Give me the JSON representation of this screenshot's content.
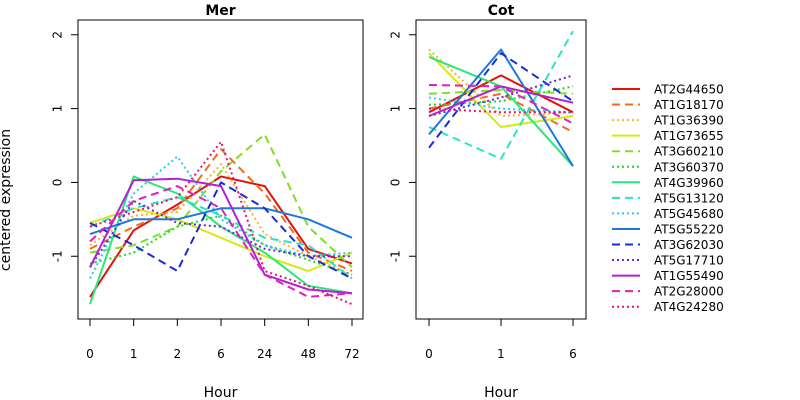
{
  "chart_data": {
    "type": "line",
    "ylabel": "centered expression",
    "xlabel": "Hour",
    "ylim": [
      -1.85,
      2.2
    ],
    "ytick_values": [
      -1,
      0,
      1,
      2
    ],
    "ytick_labels": [
      "-1",
      "0",
      "1",
      "2"
    ],
    "legend_position": "right",
    "series_styles": [
      {
        "name": "AT2G44650",
        "color": "#e3120b",
        "dash": "solid"
      },
      {
        "name": "AT1G18170",
        "color": "#f26b1d",
        "dash": "dashed"
      },
      {
        "name": "AT1G36390",
        "color": "#f5b52a",
        "dash": "dotted"
      },
      {
        "name": "AT1G73655",
        "color": "#d4ea15",
        "dash": "solid"
      },
      {
        "name": "AT3G60210",
        "color": "#7fde25",
        "dash": "dashed"
      },
      {
        "name": "AT3G60370",
        "color": "#22d622",
        "dash": "dotted"
      },
      {
        "name": "AT4G39960",
        "color": "#27e87a",
        "dash": "solid"
      },
      {
        "name": "AT5G13120",
        "color": "#26e6c5",
        "dash": "dashed"
      },
      {
        "name": "AT5G45680",
        "color": "#2ac9f3",
        "dash": "dotted"
      },
      {
        "name": "AT5G55220",
        "color": "#1f79d8",
        "dash": "solid"
      },
      {
        "name": "AT3G62030",
        "color": "#1a2bd8",
        "dash": "dashed"
      },
      {
        "name": "AT5G17710",
        "color": "#6a25d9",
        "dash": "dotted"
      },
      {
        "name": "AT1G55490",
        "color": "#b21fd6",
        "dash": "solid"
      },
      {
        "name": "AT2G28000",
        "color": "#e11fc0",
        "dash": "dashed"
      },
      {
        "name": "AT4G24280",
        "color": "#e3166a",
        "dash": "dotted"
      }
    ],
    "panels": [
      {
        "title": "Mer",
        "categories": [
          "0",
          "1",
          "2",
          "6",
          "24",
          "48",
          "72"
        ],
        "series": [
          {
            "name": "AT2G44650",
            "values": [
              -1.55,
              -0.65,
              -0.3,
              0.08,
              -0.05,
              -0.9,
              -1.1
            ]
          },
          {
            "name": "AT1G18170",
            "values": [
              -0.9,
              -0.6,
              -0.35,
              0.45,
              -0.15,
              -0.95,
              -1.2
            ]
          },
          {
            "name": "AT1G36390",
            "values": [
              -0.85,
              -0.45,
              -0.4,
              0.25,
              -0.7,
              -1.0,
              -1.25
            ]
          },
          {
            "name": "AT1G73655",
            "values": [
              -0.55,
              -0.35,
              -0.5,
              -0.75,
              -1.0,
              -1.2,
              -0.95
            ]
          },
          {
            "name": "AT3G60210",
            "values": [
              -0.95,
              -0.85,
              -0.6,
              0.15,
              0.65,
              -0.6,
              -1.15
            ]
          },
          {
            "name": "AT3G60370",
            "values": [
              -1.1,
              -0.95,
              -0.6,
              -0.45,
              -0.85,
              -1.05,
              -1.25
            ]
          },
          {
            "name": "AT4G39960",
            "values": [
              -1.65,
              0.08,
              -0.15,
              -0.6,
              -0.95,
              -1.4,
              -1.5
            ]
          },
          {
            "name": "AT5G13120",
            "values": [
              -0.6,
              -0.35,
              -0.2,
              -0.45,
              -0.75,
              -0.85,
              -1.3
            ]
          },
          {
            "name": "AT5G45680",
            "values": [
              -1.3,
              -0.15,
              0.35,
              -0.5,
              -0.85,
              -1.0,
              -0.95
            ]
          },
          {
            "name": "AT5G55220",
            "values": [
              -0.7,
              -0.5,
              -0.5,
              -0.35,
              -0.35,
              -0.5,
              -0.75
            ]
          },
          {
            "name": "AT3G62030",
            "values": [
              -0.55,
              -0.85,
              -1.2,
              0.0,
              -0.35,
              -1.0,
              -1.3
            ]
          },
          {
            "name": "AT5G17710",
            "values": [
              -1.15,
              -0.25,
              -0.55,
              -0.6,
              -0.9,
              -1.0,
              -1.0
            ]
          },
          {
            "name": "AT1G55490",
            "values": [
              -1.15,
              0.03,
              0.05,
              -0.05,
              -1.25,
              -1.45,
              -1.5
            ]
          },
          {
            "name": "AT2G28000",
            "values": [
              -0.8,
              -0.25,
              -0.05,
              -0.35,
              -1.25,
              -1.55,
              -1.5
            ]
          },
          {
            "name": "AT4G24280",
            "values": [
              -0.6,
              -0.4,
              -0.2,
              0.55,
              -1.2,
              -1.4,
              -1.65
            ]
          }
        ]
      },
      {
        "title": "Cot",
        "categories": [
          "0",
          "1",
          "6"
        ],
        "series": [
          {
            "name": "AT2G44650",
            "values": [
              0.95,
              1.45,
              0.95
            ]
          },
          {
            "name": "AT1G18170",
            "values": [
              1.0,
              1.2,
              0.68
            ]
          },
          {
            "name": "AT1G36390",
            "values": [
              1.8,
              0.9,
              0.95
            ]
          },
          {
            "name": "AT1G73655",
            "values": [
              1.75,
              0.75,
              0.9
            ]
          },
          {
            "name": "AT3G60210",
            "values": [
              1.2,
              1.25,
              1.2
            ]
          },
          {
            "name": "AT3G60370",
            "values": [
              1.05,
              1.1,
              1.3
            ]
          },
          {
            "name": "AT4G39960",
            "values": [
              1.7,
              1.3,
              0.22
            ]
          },
          {
            "name": "AT5G13120",
            "values": [
              0.75,
              0.32,
              2.05
            ]
          },
          {
            "name": "AT5G45680",
            "values": [
              1.15,
              1.0,
              0.95
            ]
          },
          {
            "name": "AT5G55220",
            "values": [
              0.65,
              1.8,
              0.22
            ]
          },
          {
            "name": "AT3G62030",
            "values": [
              0.47,
              1.75,
              1.1
            ]
          },
          {
            "name": "AT5G17710",
            "values": [
              0.9,
              1.15,
              1.45
            ]
          },
          {
            "name": "AT1G55490",
            "values": [
              0.9,
              1.3,
              1.08
            ]
          },
          {
            "name": "AT2G28000",
            "values": [
              1.32,
              1.3,
              0.8
            ]
          },
          {
            "name": "AT4G24280",
            "values": [
              1.0,
              0.95,
              0.95
            ]
          }
        ]
      }
    ]
  }
}
